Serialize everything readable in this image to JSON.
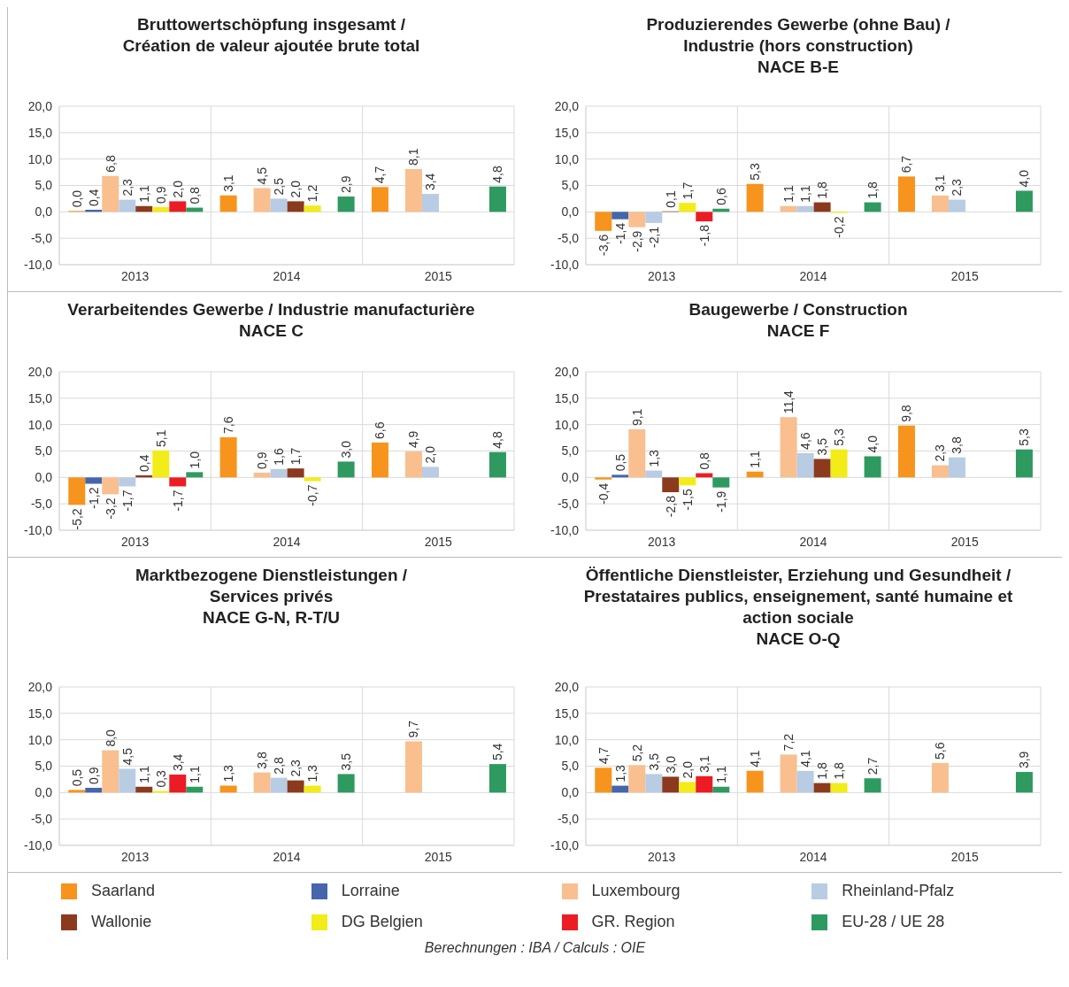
{
  "chart_data": [
    {
      "type": "bar",
      "title": "Bruttowertschöpfung insgesamt /\nCréation de valeur ajoutée brute total",
      "categories": [
        "2013",
        "2014",
        "2015"
      ],
      "ylim": [
        -10,
        20
      ],
      "yticks": [
        {
          "value": -10,
          "label": "-10,0"
        },
        {
          "value": -5,
          "label": "-5,0"
        },
        {
          "value": 0,
          "label": "0,0"
        },
        {
          "value": 5,
          "label": "5,0"
        },
        {
          "value": 10,
          "label": "10,0"
        },
        {
          "value": 15,
          "label": "15,0"
        },
        {
          "value": 20,
          "label": "20,0"
        }
      ],
      "grid": true,
      "legend": "bottom",
      "series": [
        {
          "name": "Saarland",
          "color": "#f7941d",
          "values": [
            0.0,
            3.1,
            4.7
          ],
          "value_labels": [
            "0,0",
            "3,1",
            "4,7"
          ]
        },
        {
          "name": "Lorraine",
          "color": "#4565ad",
          "values": [
            0.4,
            null,
            null
          ],
          "value_labels": [
            "0,4",
            null,
            null
          ]
        },
        {
          "name": "Luxembourg",
          "color": "#f9bf8f",
          "values": [
            6.8,
            4.5,
            8.1
          ],
          "value_labels": [
            "6,8",
            "4,5",
            "8,1"
          ]
        },
        {
          "name": "Rheinland-Pfalz",
          "color": "#b8cce4",
          "values": [
            2.3,
            2.5,
            3.4
          ],
          "value_labels": [
            "2,3",
            "2,5",
            "3,4"
          ]
        },
        {
          "name": "Wallonie",
          "color": "#8b3a1e",
          "values": [
            1.1,
            2.0,
            null
          ],
          "value_labels": [
            "1,1",
            "2,0",
            null
          ]
        },
        {
          "name": "DG Belgien",
          "color": "#f2ec19",
          "values": [
            0.9,
            1.2,
            null
          ],
          "value_labels": [
            "0,9",
            "1,2",
            null
          ]
        },
        {
          "name": "GR. Region",
          "color": "#ec1c24",
          "values": [
            2.0,
            null,
            null
          ],
          "value_labels": [
            "2,0",
            null,
            null
          ]
        },
        {
          "name": "EU-28 / UE 28",
          "color": "#2e9a5f",
          "values": [
            0.8,
            2.9,
            4.8
          ],
          "value_labels": [
            "0,8",
            "2,9",
            "4,8"
          ]
        }
      ]
    },
    {
      "type": "bar",
      "title": "Produzierendes Gewerbe (ohne Bau) /\nIndustrie (hors construction)\nNACE B-E",
      "categories": [
        "2013",
        "2014",
        "2015"
      ],
      "ylim": [
        -10,
        20
      ],
      "yticks": [
        {
          "value": -10,
          "label": "-10,0"
        },
        {
          "value": -5,
          "label": "-5,0"
        },
        {
          "value": 0,
          "label": "0,0"
        },
        {
          "value": 5,
          "label": "5,0"
        },
        {
          "value": 10,
          "label": "10,0"
        },
        {
          "value": 15,
          "label": "15,0"
        },
        {
          "value": 20,
          "label": "20,0"
        }
      ],
      "grid": true,
      "series": [
        {
          "color": "#f7941d",
          "values": [
            -3.6,
            5.3,
            6.7
          ],
          "value_labels": [
            "-3,6",
            "5,3",
            "6,7"
          ]
        },
        {
          "color": "#4565ad",
          "values": [
            -1.4,
            null,
            null
          ],
          "value_labels": [
            "-1,4",
            null,
            null
          ]
        },
        {
          "color": "#f9bf8f",
          "values": [
            -2.9,
            1.1,
            3.1
          ],
          "value_labels": [
            "-2,9",
            "1,1",
            "3,1"
          ]
        },
        {
          "color": "#b8cce4",
          "values": [
            -2.1,
            1.1,
            2.3
          ],
          "value_labels": [
            "-2,1",
            "1,1",
            "2,3"
          ]
        },
        {
          "color": "#8b3a1e",
          "values": [
            0.1,
            1.8,
            null
          ],
          "value_labels": [
            "0,1",
            "1,8",
            null
          ]
        },
        {
          "color": "#f2ec19",
          "values": [
            1.7,
            -0.2,
            null
          ],
          "value_labels": [
            "1,7",
            "-0,2",
            null
          ]
        },
        {
          "color": "#ec1c24",
          "values": [
            -1.8,
            null,
            null
          ],
          "value_labels": [
            "-1,8",
            null,
            null
          ]
        },
        {
          "color": "#2e9a5f",
          "values": [
            0.6,
            1.8,
            4.0
          ],
          "value_labels": [
            "0,6",
            "1,8",
            "4,0"
          ]
        }
      ]
    },
    {
      "type": "bar",
      "title": "Verarbeitendes Gewerbe / Industrie manufacturière\nNACE C",
      "categories": [
        "2013",
        "2014",
        "2015"
      ],
      "ylim": [
        -10,
        20
      ],
      "yticks": [
        {
          "value": -10,
          "label": "-10,0"
        },
        {
          "value": -5,
          "label": "-5,0"
        },
        {
          "value": 0,
          "label": "0,0"
        },
        {
          "value": 5,
          "label": "5,0"
        },
        {
          "value": 10,
          "label": "10,0"
        },
        {
          "value": 15,
          "label": "15,0"
        },
        {
          "value": 20,
          "label": "20,0"
        }
      ],
      "grid": true,
      "series": [
        {
          "color": "#f7941d",
          "values": [
            -5.2,
            7.6,
            6.6
          ],
          "value_labels": [
            "-5,2",
            "7,6",
            "6,6"
          ]
        },
        {
          "color": "#4565ad",
          "values": [
            -1.2,
            null,
            null
          ],
          "value_labels": [
            "-1,2",
            null,
            null
          ]
        },
        {
          "color": "#f9bf8f",
          "values": [
            -3.2,
            0.9,
            4.9
          ],
          "value_labels": [
            "-3,2",
            "0,9",
            "4,9"
          ]
        },
        {
          "color": "#b8cce4",
          "values": [
            -1.7,
            1.6,
            2.0
          ],
          "value_labels": [
            "-1,7",
            "1,6",
            "2,0"
          ]
        },
        {
          "color": "#8b3a1e",
          "values": [
            0.4,
            1.7,
            null
          ],
          "value_labels": [
            "0,4",
            "1,7",
            null
          ]
        },
        {
          "color": "#f2ec19",
          "values": [
            5.1,
            -0.7,
            null
          ],
          "value_labels": [
            "5,1",
            "-0,7",
            null
          ]
        },
        {
          "color": "#ec1c24",
          "values": [
            -1.7,
            null,
            null
          ],
          "value_labels": [
            "-1,7",
            null,
            null
          ]
        },
        {
          "color": "#2e9a5f",
          "values": [
            1.0,
            3.0,
            4.8
          ],
          "value_labels": [
            "1,0",
            "3,0",
            "4,8"
          ]
        }
      ]
    },
    {
      "type": "bar",
      "title": "Baugewerbe / Construction\nNACE F",
      "categories": [
        "2013",
        "2014",
        "2015"
      ],
      "ylim": [
        -10,
        20
      ],
      "yticks": [
        {
          "value": -10,
          "label": "-10,0"
        },
        {
          "value": -5,
          "label": "-5,0"
        },
        {
          "value": 0,
          "label": "0,0"
        },
        {
          "value": 5,
          "label": "5,0"
        },
        {
          "value": 10,
          "label": "10,0"
        },
        {
          "value": 15,
          "label": "15,0"
        },
        {
          "value": 20,
          "label": "20,0"
        }
      ],
      "grid": true,
      "series": [
        {
          "color": "#f7941d",
          "values": [
            -0.4,
            1.1,
            9.8
          ],
          "value_labels": [
            "-0,4",
            "1,1",
            "9,8"
          ]
        },
        {
          "color": "#4565ad",
          "values": [
            0.5,
            null,
            null
          ],
          "value_labels": [
            "0,5",
            null,
            null
          ]
        },
        {
          "color": "#f9bf8f",
          "values": [
            9.1,
            11.4,
            2.3
          ],
          "value_labels": [
            "9,1",
            "11,4",
            "2,3"
          ]
        },
        {
          "color": "#b8cce4",
          "values": [
            1.3,
            4.6,
            3.8
          ],
          "value_labels": [
            "1,3",
            "4,6",
            "3,8"
          ]
        },
        {
          "color": "#8b3a1e",
          "values": [
            -2.8,
            3.5,
            null
          ],
          "value_labels": [
            "-2,8",
            "3,5",
            null
          ]
        },
        {
          "color": "#f2ec19",
          "values": [
            -1.5,
            5.3,
            null
          ],
          "value_labels": [
            "-1,5",
            "5,3",
            null
          ]
        },
        {
          "color": "#ec1c24",
          "values": [
            0.8,
            null,
            null
          ],
          "value_labels": [
            "0,8",
            null,
            null
          ]
        },
        {
          "color": "#2e9a5f",
          "values": [
            -1.9,
            4.0,
            5.3
          ],
          "value_labels": [
            "-1,9",
            "4,0",
            "5,3"
          ]
        }
      ]
    },
    {
      "type": "bar",
      "title": "Marktbezogene Dienstleistungen /\nServices privés\nNACE G-N, R-T/U",
      "categories": [
        "2013",
        "2014",
        "2015"
      ],
      "ylim": [
        -10,
        20
      ],
      "yticks": [
        {
          "value": -10,
          "label": "-10,0"
        },
        {
          "value": -5,
          "label": "-5,0"
        },
        {
          "value": 0,
          "label": "0,0"
        },
        {
          "value": 5,
          "label": "5,0"
        },
        {
          "value": 10,
          "label": "10,0"
        },
        {
          "value": 15,
          "label": "15,0"
        },
        {
          "value": 20,
          "label": "20,0"
        }
      ],
      "grid": true,
      "series": [
        {
          "color": "#f7941d",
          "values": [
            0.5,
            1.3,
            null
          ],
          "value_labels": [
            "0,5",
            "1,3",
            null
          ]
        },
        {
          "color": "#4565ad",
          "values": [
            0.9,
            null,
            null
          ],
          "value_labels": [
            "0,9",
            null,
            null
          ]
        },
        {
          "color": "#f9bf8f",
          "values": [
            8.0,
            3.8,
            9.7
          ],
          "value_labels": [
            "8,0",
            "3,8",
            "9,7"
          ]
        },
        {
          "color": "#b8cce4",
          "values": [
            4.5,
            2.8,
            null
          ],
          "value_labels": [
            "4,5",
            "2,8",
            null
          ]
        },
        {
          "color": "#8b3a1e",
          "values": [
            1.1,
            2.3,
            null
          ],
          "value_labels": [
            "1,1",
            "2,3",
            null
          ]
        },
        {
          "color": "#f2ec19",
          "values": [
            0.3,
            1.3,
            null
          ],
          "value_labels": [
            "0,3",
            "1,3",
            null
          ]
        },
        {
          "color": "#ec1c24",
          "values": [
            3.4,
            null,
            null
          ],
          "value_labels": [
            "3,4",
            null,
            null
          ]
        },
        {
          "color": "#2e9a5f",
          "values": [
            1.1,
            3.5,
            5.4
          ],
          "value_labels": [
            "1,1",
            "3,5",
            "5,4"
          ]
        }
      ]
    },
    {
      "type": "bar",
      "title": "Öffentliche Dienstleister, Erziehung und Gesundheit /\nPrestataires publics, enseignement, santé humaine et\naction sociale\nNACE O-Q",
      "categories": [
        "2013",
        "2014",
        "2015"
      ],
      "ylim": [
        -10,
        20
      ],
      "yticks": [
        {
          "value": -10,
          "label": "-10,0"
        },
        {
          "value": -5,
          "label": "-5,0"
        },
        {
          "value": 0,
          "label": "0,0"
        },
        {
          "value": 5,
          "label": "5,0"
        },
        {
          "value": 10,
          "label": "10,0"
        },
        {
          "value": 15,
          "label": "15,0"
        },
        {
          "value": 20,
          "label": "20,0"
        }
      ],
      "grid": true,
      "annotations": [
        "Berechnungen : IBA / Calculs : OIE"
      ],
      "series": [
        {
          "color": "#f7941d",
          "values": [
            4.7,
            4.1,
            null
          ],
          "value_labels": [
            "4,7",
            "4,1",
            null
          ]
        },
        {
          "color": "#4565ad",
          "values": [
            1.3,
            null,
            null
          ],
          "value_labels": [
            "1,3",
            null,
            null
          ]
        },
        {
          "color": "#f9bf8f",
          "values": [
            5.2,
            7.2,
            5.6
          ],
          "value_labels": [
            "5,2",
            "7,2",
            "5,6"
          ]
        },
        {
          "color": "#b8cce4",
          "values": [
            3.5,
            4.1,
            null
          ],
          "value_labels": [
            "3,5",
            "4,1",
            null
          ]
        },
        {
          "color": "#8b3a1e",
          "values": [
            3.0,
            1.8,
            null
          ],
          "value_labels": [
            "3,0",
            "1,8",
            null
          ]
        },
        {
          "color": "#f2ec19",
          "values": [
            2.0,
            1.8,
            null
          ],
          "value_labels": [
            "2,0",
            "1,8",
            null
          ]
        },
        {
          "color": "#ec1c24",
          "values": [
            3.1,
            null,
            null
          ],
          "value_labels": [
            "3,1",
            null,
            null
          ]
        },
        {
          "color": "#2e9a5f",
          "values": [
            1.1,
            2.7,
            3.9
          ],
          "value_labels": [
            "1,1",
            "2,7",
            "3,9"
          ]
        }
      ]
    }
  ]
}
